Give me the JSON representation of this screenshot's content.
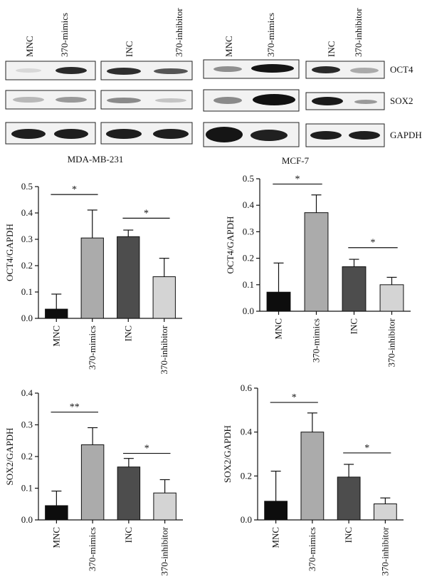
{
  "blots": {
    "groups": [
      {
        "cell_line": "MDA-MB-231",
        "lanes": [
          "MNC",
          "370-mimics",
          "INC",
          "370-inhibitor"
        ]
      },
      {
        "cell_line": "MCF-7",
        "lanes": [
          "MNC",
          "370-mimics",
          "INC",
          "370-inhibitor"
        ]
      }
    ],
    "markers": [
      "OCT4",
      "SOX2",
      "GAPDH"
    ]
  },
  "chart_data": [
    {
      "type": "bar",
      "categories": [
        "MNC",
        "370-mimics",
        "INC",
        "370-inhibitor"
      ],
      "values": [
        0.035,
        0.305,
        0.31,
        0.158
      ],
      "errors": [
        0.057,
        0.106,
        0.025,
        0.07
      ],
      "colors": [
        "#0d0d0d",
        "#ababab",
        "#4d4d4d",
        "#d4d4d4"
      ],
      "ylabel": "OCT4/GAPDH",
      "ylim": [
        0,
        0.5
      ],
      "yticks": [
        "0.0",
        "0.1",
        "0.2",
        "0.3",
        "0.4",
        "0.5"
      ],
      "significance": [
        {
          "from": 0,
          "to": 1,
          "label": "*",
          "y": 0.47
        },
        {
          "from": 2,
          "to": 3,
          "label": "*",
          "y": 0.38
        }
      ]
    },
    {
      "type": "bar",
      "categories": [
        "MNC",
        "370-mimics",
        "INC",
        "370-inhibitor"
      ],
      "values": [
        0.072,
        0.372,
        0.168,
        0.1
      ],
      "errors": [
        0.11,
        0.067,
        0.028,
        0.028
      ],
      "colors": [
        "#0d0d0d",
        "#ababab",
        "#4d4d4d",
        "#d4d4d4"
      ],
      "ylabel": "OCT4/GAPDH",
      "ylim": [
        0,
        0.5
      ],
      "yticks": [
        "0.0",
        "0.1",
        "0.2",
        "0.3",
        "0.4",
        "0.5"
      ],
      "significance": [
        {
          "from": 0,
          "to": 1,
          "label": "*",
          "y": 0.48
        },
        {
          "from": 2,
          "to": 3,
          "label": "*",
          "y": 0.24
        }
      ]
    },
    {
      "type": "bar",
      "categories": [
        "MNC",
        "370-mimics",
        "INC",
        "370-inhibitor"
      ],
      "values": [
        0.045,
        0.237,
        0.167,
        0.085
      ],
      "errors": [
        0.046,
        0.054,
        0.027,
        0.042
      ],
      "colors": [
        "#0d0d0d",
        "#ababab",
        "#4d4d4d",
        "#d4d4d4"
      ],
      "ylabel": "SOX2/GAPDH",
      "ylim": [
        0,
        0.4
      ],
      "yticks": [
        "0.0",
        "0.1",
        "0.2",
        "0.3",
        "0.4"
      ],
      "significance": [
        {
          "from": 0,
          "to": 1,
          "label": "**",
          "y": 0.34
        },
        {
          "from": 2,
          "to": 3,
          "label": "*",
          "y": 0.21
        }
      ]
    },
    {
      "type": "bar",
      "categories": [
        "MNC",
        "370-mimics",
        "INC",
        "370-inhibitor"
      ],
      "values": [
        0.085,
        0.4,
        0.195,
        0.073
      ],
      "errors": [
        0.137,
        0.087,
        0.058,
        0.027
      ],
      "colors": [
        "#0d0d0d",
        "#ababab",
        "#4d4d4d",
        "#d4d4d4"
      ],
      "ylabel": "SOX2/GAPDH",
      "ylim": [
        0,
        0.6
      ],
      "yticks": [
        "0.0",
        "0.2",
        "0.4",
        "0.6"
      ],
      "significance": [
        {
          "from": 0,
          "to": 1,
          "label": "*",
          "y": 0.535
        },
        {
          "from": 2,
          "to": 3,
          "label": "*",
          "y": 0.305
        }
      ]
    }
  ]
}
